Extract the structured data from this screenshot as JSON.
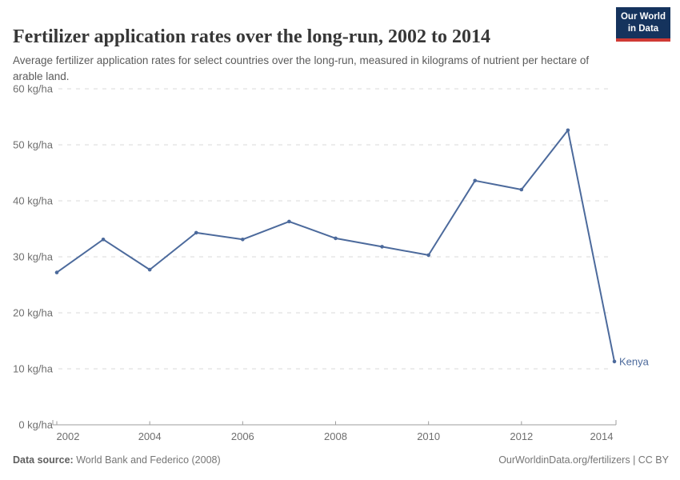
{
  "header": {
    "title": "Fertilizer application rates over the long-run, 2002 to 2014",
    "subtitle": "Average fertilizer application rates for select countries over the long-run, measured in kilograms of nutrient per hectare of arable land."
  },
  "logo": {
    "line1": "Our World",
    "line2": "in Data"
  },
  "chart_data": {
    "type": "line",
    "title": "Fertilizer application rates over the long-run, 2002 to 2014",
    "xlabel": "",
    "ylabel": "kg of nutrient per hectare of arable land",
    "x": [
      2002,
      2003,
      2004,
      2005,
      2006,
      2007,
      2008,
      2009,
      2010,
      2011,
      2012,
      2013,
      2014
    ],
    "series": [
      {
        "name": "Kenya",
        "color": "#4c6a9c",
        "values": [
          27.2,
          33.1,
          27.7,
          34.3,
          33.1,
          36.3,
          33.3,
          31.8,
          30.3,
          43.6,
          42.0,
          52.6,
          11.3
        ]
      }
    ],
    "xticks": [
      2002,
      2004,
      2006,
      2008,
      2010,
      2012,
      2014
    ],
    "yticks": [
      0,
      10,
      20,
      30,
      40,
      50,
      60
    ],
    "ytick_suffix": " kg/ha",
    "xlim": [
      2002,
      2014
    ],
    "ylim": [
      0,
      60
    ],
    "grid": "horizontal-dashed",
    "legend": "entity-label-at-line-end"
  },
  "footer": {
    "source_label": "Data source:",
    "source_value": "World Bank and Federico (2008)",
    "attribution": "OurWorldinData.org/fertilizers | CC BY"
  },
  "colors": {
    "line": "#4c6a9c",
    "entity_label": "#4c6a9c",
    "grid": "#dadada",
    "axis": "#9e9e9e",
    "tick_text": "#6e6e6e",
    "logo_bg": "#15335d",
    "logo_stripe": "#cf3a34"
  }
}
